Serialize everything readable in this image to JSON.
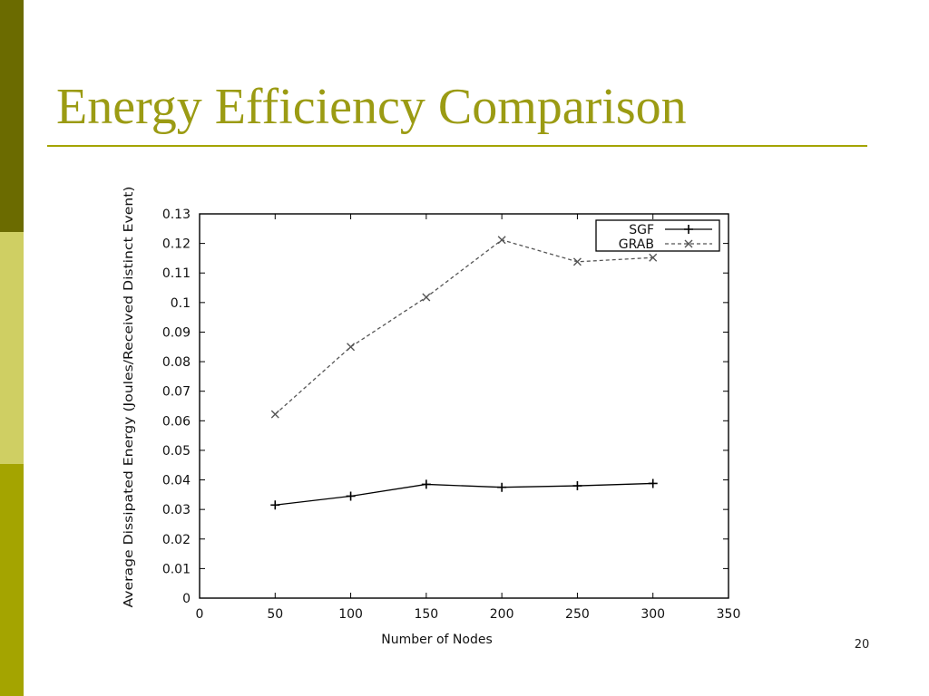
{
  "slide": {
    "title": "Energy Efficiency Comparison",
    "page_number": "20"
  },
  "theme": {
    "title_color": "#9b9b13",
    "rule_color": "#a4a400",
    "sidebar_top": "#6b6b00",
    "sidebar_mid": "#cfcf63",
    "sidebar_bottom": "#a4a400"
  },
  "chart_data": {
    "type": "line",
    "title": "",
    "xlabel": "Number of Nodes",
    "ylabel": "Average Dissipated Energy (Joules/Received Distinct Event)",
    "xlim": [
      0,
      350
    ],
    "ylim": [
      0,
      0.13
    ],
    "x_ticks": [
      "0",
      "50",
      "100",
      "150",
      "200",
      "250",
      "300",
      "350"
    ],
    "y_ticks": [
      "0",
      "0.01",
      "0.02",
      "0.03",
      "0.04",
      "0.05",
      "0.06",
      "0.07",
      "0.08",
      "0.09",
      "0.1",
      "0.11",
      "0.12",
      "0.13"
    ],
    "grid": false,
    "legend_position": "top-right",
    "series": [
      {
        "name": "SGF",
        "marker": "plus",
        "line_style": "solid",
        "color": "#000000",
        "x": [
          50,
          100,
          150,
          200,
          250,
          300
        ],
        "y": [
          0.0315,
          0.0345,
          0.0385,
          0.0375,
          0.038,
          0.0388
        ]
      },
      {
        "name": "GRAB",
        "marker": "cross",
        "line_style": "dashed",
        "color": "#555555",
        "x": [
          50,
          100,
          150,
          200,
          250,
          300
        ],
        "y": [
          0.0622,
          0.085,
          0.1018,
          0.1212,
          0.1138,
          0.1152
        ]
      }
    ]
  }
}
